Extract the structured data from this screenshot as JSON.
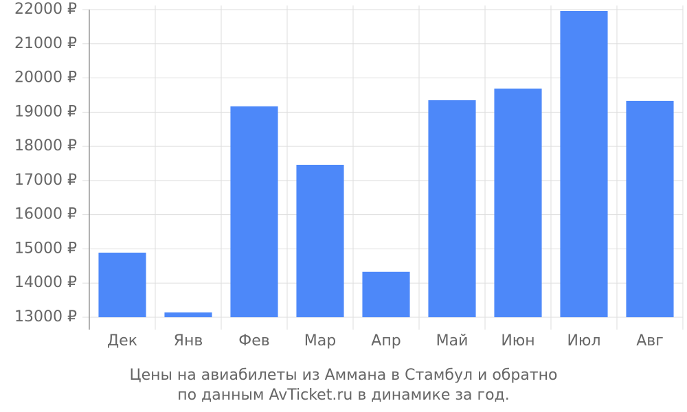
{
  "chart_data": {
    "type": "bar",
    "title": "Цены на авиабилеты из Аммана в Стамбул и обратно",
    "subtitle": "по данным AvTicket.ru в динамике за год.",
    "categories": [
      "Дек",
      "Янв",
      "Фев",
      "Мар",
      "Апр",
      "Май",
      "Июн",
      "Июл",
      "Авг"
    ],
    "values": [
      14890,
      13140,
      19170,
      17460,
      14330,
      19350,
      19690,
      21960,
      19330
    ],
    "color": "#4d88f9",
    "ylim": [
      13000,
      22000
    ],
    "yticks": [
      {
        "value": 13000,
        "label": "13000 ₽"
      },
      {
        "value": 14000,
        "label": "14000 ₽"
      },
      {
        "value": 15000,
        "label": "15000 ₽"
      },
      {
        "value": 16000,
        "label": "16000 ₽"
      },
      {
        "value": 17000,
        "label": "17000 ₽"
      },
      {
        "value": 18000,
        "label": "18000 ₽"
      },
      {
        "value": 19000,
        "label": "19000 ₽"
      },
      {
        "value": 20000,
        "label": "20000 ₽"
      },
      {
        "value": 21000,
        "label": "21000 ₽"
      },
      {
        "value": 22000,
        "label": "22000 ₽"
      }
    ],
    "grid": true
  }
}
